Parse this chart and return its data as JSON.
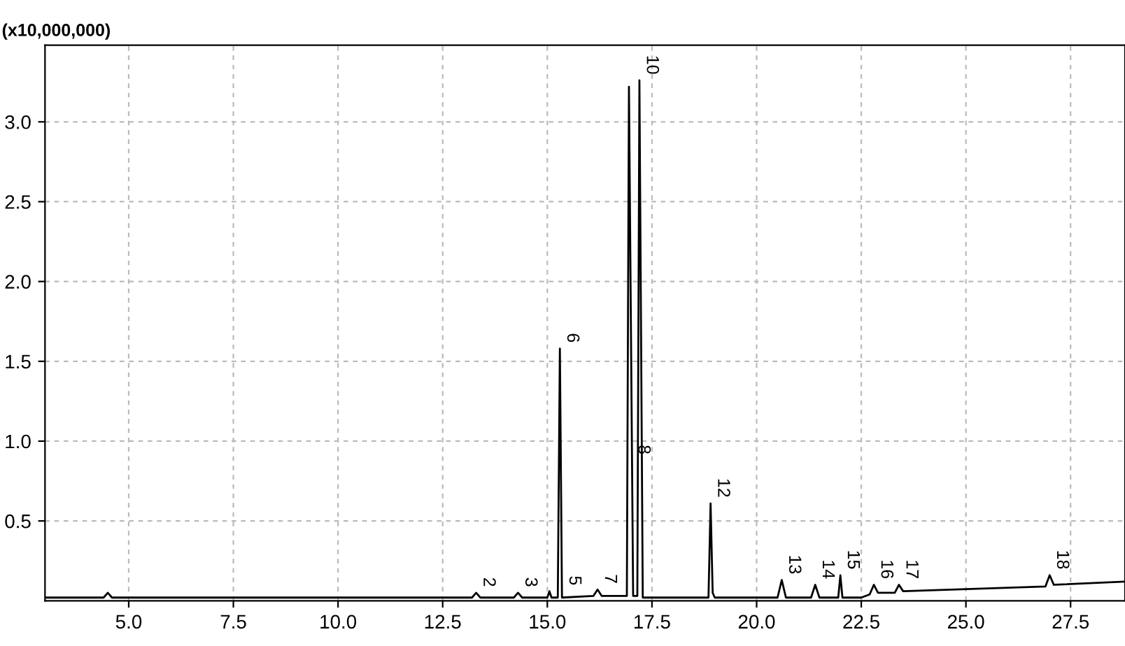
{
  "chart_data": {
    "type": "line",
    "ylabel": "(x10,000,000)",
    "series": [
      {
        "color": "#000000",
        "x": [
          3.0,
          4.4,
          4.5,
          4.6,
          13.2,
          13.3,
          13.4,
          14.2,
          14.3,
          14.4,
          15.0,
          15.05,
          15.1,
          15.25,
          15.3,
          15.35,
          16.1,
          16.2,
          16.3,
          16.9,
          16.95,
          17.05,
          17.15,
          17.2,
          17.28,
          18.85,
          18.9,
          18.95,
          19.0,
          20.5,
          20.6,
          20.7,
          21.3,
          21.4,
          21.5,
          21.95,
          22.0,
          22.05,
          22.5,
          22.7,
          22.8,
          22.9,
          23.3,
          23.4,
          23.5,
          26.9,
          27.0,
          27.1,
          28.8
        ],
        "values": [
          0.02,
          0.02,
          0.05,
          0.02,
          0.02,
          0.05,
          0.02,
          0.02,
          0.05,
          0.02,
          0.02,
          0.06,
          0.02,
          0.02,
          1.58,
          0.02,
          0.03,
          0.07,
          0.03,
          0.03,
          3.22,
          0.03,
          0.03,
          3.26,
          0.02,
          0.02,
          0.61,
          0.05,
          0.02,
          0.02,
          0.13,
          0.02,
          0.02,
          0.1,
          0.02,
          0.02,
          0.16,
          0.02,
          0.02,
          0.04,
          0.1,
          0.05,
          0.05,
          0.1,
          0.06,
          0.09,
          0.16,
          0.1,
          0.12
        ]
      }
    ],
    "xlim": [
      3.0,
      28.8
    ],
    "ylim": [
      0,
      3.48
    ],
    "xticks": [
      {
        "value": 5.0,
        "label": "5.0"
      },
      {
        "value": 7.5,
        "label": "7.5"
      },
      {
        "value": 10.0,
        "label": "10.0"
      },
      {
        "value": 12.5,
        "label": "12.5"
      },
      {
        "value": 15.0,
        "label": "15.0"
      },
      {
        "value": 17.5,
        "label": "17.5"
      },
      {
        "value": 20.0,
        "label": "20.0"
      },
      {
        "value": 22.5,
        "label": "22.5"
      },
      {
        "value": 25.0,
        "label": "25.0"
      },
      {
        "value": 27.5,
        "label": "27.5"
      }
    ],
    "yticks": [
      0.5,
      {
        "value": 1.0,
        "label": "1.0"
      },
      1.5,
      {
        "value": 2.0,
        "label": "2.0"
      },
      2.5,
      {
        "value": 3.0,
        "label": "3.0"
      }
    ],
    "grid": true,
    "marker": "none",
    "line_style": "solid",
    "annotations": [
      {
        "text": "2",
        "x": 13.3,
        "y": 0.05
      },
      {
        "text": "3",
        "x": 14.3,
        "y": 0.05
      },
      {
        "text": "5",
        "x": 15.35,
        "y": 0.06
      },
      {
        "text": "6",
        "x": 15.3,
        "y": 1.58
      },
      {
        "text": "7",
        "x": 16.2,
        "y": 0.07
      },
      {
        "text": "8",
        "x": 17.0,
        "y": 0.88
      },
      {
        "text": "10",
        "x": 17.2,
        "y": 3.26
      },
      {
        "text": "12",
        "x": 18.9,
        "y": 0.61
      },
      {
        "text": "13",
        "x": 20.6,
        "y": 0.13
      },
      {
        "text": "14",
        "x": 21.4,
        "y": 0.1
      },
      {
        "text": "15",
        "x": 22.0,
        "y": 0.16
      },
      {
        "text": "16",
        "x": 22.8,
        "y": 0.1
      },
      {
        "text": "17",
        "x": 23.4,
        "y": 0.1
      },
      {
        "text": "18",
        "x": 27.0,
        "y": 0.16
      }
    ]
  }
}
